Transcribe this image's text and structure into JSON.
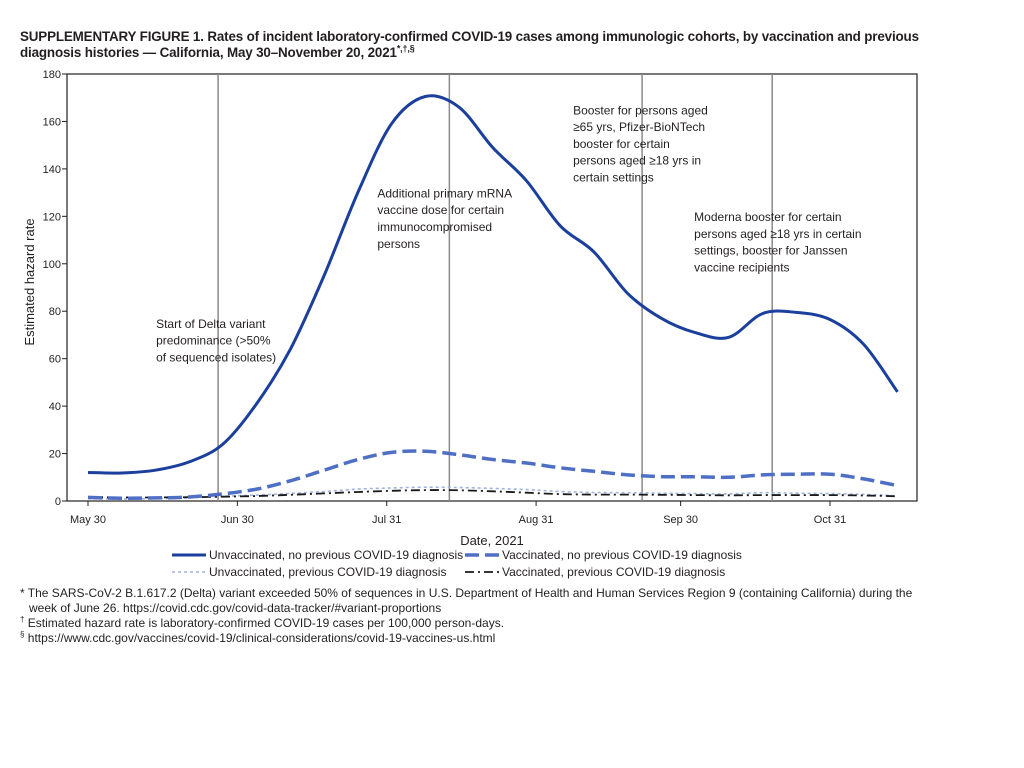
{
  "title": {
    "main": "SUPPLEMENTARY FIGURE 1. Rates of incident laboratory-confirmed COVID-19 cases among immunologic cohorts, by vaccination and previous diagnosis histories — California, May 30–November 20, 2021",
    "marks": "*,†,§"
  },
  "chart_data": {
    "type": "line",
    "xlabel": "Date, 2021",
    "ylabel": "Estimated hazard rate",
    "ylim": [
      0,
      180
    ],
    "yticks": [
      0,
      20,
      40,
      60,
      80,
      100,
      120,
      140,
      160,
      180
    ],
    "xlim": [
      "2021-05-30",
      "2021-11-20"
    ],
    "xticks": [
      {
        "label": "May 30",
        "date": "2021-05-30"
      },
      {
        "label": "Jun 30",
        "date": "2021-06-30"
      },
      {
        "label": "Jul 31",
        "date": "2021-07-31"
      },
      {
        "label": "Aug 31",
        "date": "2021-08-31"
      },
      {
        "label": "Sep 30",
        "date": "2021-09-30"
      },
      {
        "label": "Oct 31",
        "date": "2021-10-31"
      }
    ],
    "x": [
      "2021-05-30",
      "2021-06-06",
      "2021-06-13",
      "2021-06-20",
      "2021-06-27",
      "2021-07-04",
      "2021-07-11",
      "2021-07-18",
      "2021-07-25",
      "2021-08-01",
      "2021-08-08",
      "2021-08-15",
      "2021-08-22",
      "2021-08-29",
      "2021-09-05",
      "2021-09-12",
      "2021-09-19",
      "2021-09-26",
      "2021-10-03",
      "2021-10-10",
      "2021-10-17",
      "2021-10-24",
      "2021-10-31",
      "2021-11-07",
      "2021-11-14"
    ],
    "series": [
      {
        "name": "Unvaccinated, no previous COVID-19 diagnosis",
        "color": "#1b3f9c",
        "style": "solid",
        "values": [
          12,
          11.8,
          13,
          16.5,
          24,
          41,
          64,
          95,
          130,
          159,
          170.5,
          166,
          149,
          135,
          116,
          105,
          87.5,
          77,
          71,
          69,
          79,
          79.5,
          76.5,
          66,
          46
        ]
      },
      {
        "name": "Vaccinated, no previous COVID-19 diagnosis",
        "color": "#4e6fc4",
        "style": "dashed",
        "values": [
          1.5,
          1.2,
          1.3,
          1.7,
          3,
          5,
          8.5,
          13,
          17.5,
          20.5,
          21,
          19.5,
          17.5,
          16,
          14,
          12.5,
          11,
          10.3,
          10.2,
          10,
          11,
          11.3,
          11.3,
          9.3,
          6.5
        ]
      },
      {
        "name": "Unvaccinated, previous COVID-19 diagnosis",
        "color": "#9fb4e0",
        "style": "dotted",
        "values": [
          1,
          0.8,
          1,
          1.3,
          2,
          2.5,
          3.2,
          4,
          5,
          5.5,
          5.8,
          5.7,
          5.3,
          4.8,
          4,
          3.6,
          3.5,
          3.3,
          3.1,
          3.0,
          3.5,
          3.3,
          3.1,
          2.8,
          2.2
        ]
      },
      {
        "name": "Vaccinated, previous COVID-19 diagnosis",
        "color": "#1a1a1a",
        "style": "dashdot",
        "values": [
          1.6,
          1.5,
          1.5,
          1.6,
          1.8,
          2.1,
          2.6,
          3.2,
          3.8,
          4.3,
          4.6,
          4.5,
          4.1,
          3.5,
          2.9,
          2.7,
          2.7,
          2.6,
          2.5,
          2.4,
          2.5,
          2.5,
          2.5,
          2.3,
          2.0
        ]
      }
    ],
    "events": [
      {
        "date": "2021-06-26",
        "label_lines": [
          "Start of Delta variant",
          "predominance (>50%",
          "of sequenced isolates)"
        ],
        "label_y": 73
      },
      {
        "date": "2021-08-13",
        "label_lines": [
          "Additional primary mRNA",
          "vaccine dose for certain",
          "immunocompromised",
          "persons"
        ],
        "label_y": 128
      },
      {
        "date": "2021-09-22",
        "label_lines": [
          "Booster for persons aged",
          "≥65 yrs, Pfizer-BioNTech",
          "booster for certain",
          "persons aged ≥18 yrs in",
          "certain settings"
        ],
        "label_y": 163
      },
      {
        "date": "2021-10-19",
        "label_lines": [
          "Moderna booster for certain",
          "persons aged ≥18 yrs in certain",
          "settings, booster for Janssen",
          "vaccine recipients"
        ],
        "label_y": 118
      }
    ],
    "grid": false,
    "legend_position": "bottom"
  },
  "footnotes": [
    {
      "mark": "*",
      "lines": [
        "The SARS-CoV-2 B.1.617.2 (Delta) variant exceeded 50% of sequences in U.S. Department of Health and Human Services Region 9 (containing California) during the",
        "week of June 26. https://covid.cdc.gov/covid-data-tracker/#variant-proportions"
      ]
    },
    {
      "mark": "†",
      "lines": [
        "Estimated hazard rate is laboratory-confirmed COVID-19 cases per 100,000 person-days."
      ]
    },
    {
      "mark": "§",
      "lines": [
        "https://www.cdc.gov/vaccines/covid-19/clinical-considerations/covid-19-vaccines-us.html"
      ]
    }
  ]
}
